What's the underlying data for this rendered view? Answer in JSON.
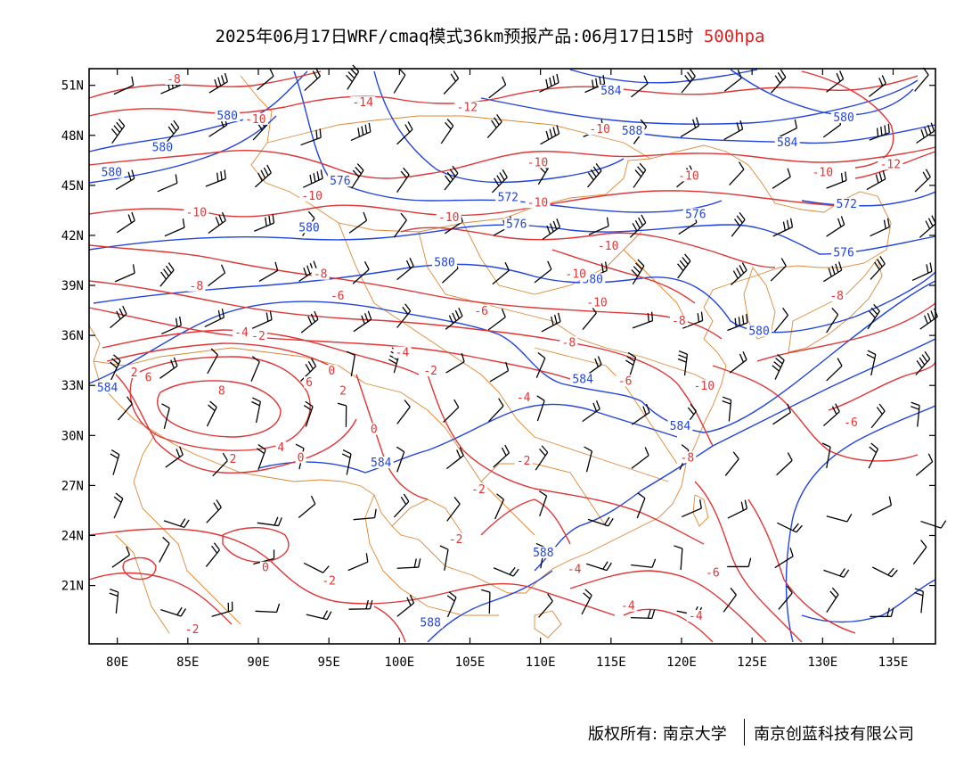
{
  "title": {
    "main": "2025年06月17日WRF/cmaq模式36km预报产品:06月17日15时",
    "level": "500hpa"
  },
  "axes": {
    "lat_labels": [
      "51N",
      "48N",
      "45N",
      "42N",
      "39N",
      "36N",
      "33N",
      "30N",
      "27N",
      "24N",
      "21N"
    ],
    "lat_values": [
      51,
      48,
      45,
      42,
      39,
      36,
      33,
      30,
      27,
      24,
      21
    ],
    "lon_labels": [
      "80E",
      "85E",
      "90E",
      "95E",
      "100E",
      "105E",
      "110E",
      "115E",
      "120E",
      "125E",
      "130E",
      "135E"
    ],
    "lon_values": [
      80,
      85,
      90,
      95,
      100,
      105,
      110,
      115,
      120,
      125,
      130,
      135
    ],
    "lon_range": [
      78,
      138
    ],
    "lat_range": [
      17.5,
      52
    ]
  },
  "colors": {
    "height_contours": "#2244dd",
    "temperature_contours": "#e03535",
    "boundaries": "#dd8833",
    "wind_barbs": "#000000"
  },
  "map": {
    "layers": [
      "geopotential-height (blue)",
      "temperature (red)",
      "wind-barbs (black)",
      "province-boundaries (orange)"
    ],
    "height_labels": [
      {
        "text": "584",
        "lon": 115,
        "lat": 50.5
      },
      {
        "text": "588",
        "lon": 116.5,
        "lat": 48.1
      },
      {
        "text": "580",
        "lon": 131.5,
        "lat": 48.9
      },
      {
        "text": "584",
        "lon": 127.5,
        "lat": 47.4
      },
      {
        "text": "580",
        "lon": 87.8,
        "lat": 49.0
      },
      {
        "text": "580",
        "lon": 83.2,
        "lat": 47.1
      },
      {
        "text": "580",
        "lon": 79.6,
        "lat": 45.6
      },
      {
        "text": "576",
        "lon": 95.8,
        "lat": 45.1
      },
      {
        "text": "572",
        "lon": 107.7,
        "lat": 44.1
      },
      {
        "text": "572",
        "lon": 131.7,
        "lat": 43.7
      },
      {
        "text": "576",
        "lon": 108.3,
        "lat": 42.5
      },
      {
        "text": "576",
        "lon": 121.0,
        "lat": 43.1
      },
      {
        "text": "576",
        "lon": 131.5,
        "lat": 40.8
      },
      {
        "text": "580",
        "lon": 93.6,
        "lat": 42.3
      },
      {
        "text": "580",
        "lon": 103.2,
        "lat": 40.2
      },
      {
        "text": "580",
        "lon": 113.7,
        "lat": 39.2
      },
      {
        "text": "580",
        "lon": 125.5,
        "lat": 36.1
      },
      {
        "text": "584",
        "lon": 79.3,
        "lat": 32.7
      },
      {
        "text": "584",
        "lon": 113.0,
        "lat": 33.2
      },
      {
        "text": "584",
        "lon": 119.9,
        "lat": 30.4
      },
      {
        "text": "584",
        "lon": 98.7,
        "lat": 28.2
      },
      {
        "text": "588",
        "lon": 110.2,
        "lat": 22.8
      },
      {
        "text": "588",
        "lon": 102.2,
        "lat": 18.6
      }
    ],
    "temp_labels": [
      {
        "text": "-8",
        "lon": 84.0,
        "lat": 51.2
      },
      {
        "text": "-10",
        "lon": 89.8,
        "lat": 48.8
      },
      {
        "text": "-14",
        "lon": 97.4,
        "lat": 49.8
      },
      {
        "text": "-12",
        "lon": 104.8,
        "lat": 49.5
      },
      {
        "text": "-10",
        "lon": 114.2,
        "lat": 48.2
      },
      {
        "text": "-10",
        "lon": 109.8,
        "lat": 46.2
      },
      {
        "text": "-10",
        "lon": 120.5,
        "lat": 45.4
      },
      {
        "text": "-10",
        "lon": 130.0,
        "lat": 45.6
      },
      {
        "text": "-12",
        "lon": 134.8,
        "lat": 46.1
      },
      {
        "text": "-10",
        "lon": 93.8,
        "lat": 44.2
      },
      {
        "text": "-10",
        "lon": 109.8,
        "lat": 43.8
      },
      {
        "text": "-10",
        "lon": 103.5,
        "lat": 42.9
      },
      {
        "text": "-10",
        "lon": 85.6,
        "lat": 43.2
      },
      {
        "text": "-10",
        "lon": 114.8,
        "lat": 41.2
      },
      {
        "text": "-10",
        "lon": 112.5,
        "lat": 39.5
      },
      {
        "text": "-10",
        "lon": 114.0,
        "lat": 37.8
      },
      {
        "text": "-8",
        "lon": 94.4,
        "lat": 39.5
      },
      {
        "text": "-8",
        "lon": 85.6,
        "lat": 38.8
      },
      {
        "text": "-6",
        "lon": 95.6,
        "lat": 38.2
      },
      {
        "text": "-6",
        "lon": 105.8,
        "lat": 37.3
      },
      {
        "text": "-8",
        "lon": 119.8,
        "lat": 36.7
      },
      {
        "text": "-8",
        "lon": 131.0,
        "lat": 38.2
      },
      {
        "text": "-8",
        "lon": 112.0,
        "lat": 35.4
      },
      {
        "text": "-4",
        "lon": 88.8,
        "lat": 36.0
      },
      {
        "text": "-2",
        "lon": 90.0,
        "lat": 35.8
      },
      {
        "text": "-4",
        "lon": 100.2,
        "lat": 34.8
      },
      {
        "text": "-2",
        "lon": 102.2,
        "lat": 33.7
      },
      {
        "text": "0",
        "lon": 95.2,
        "lat": 33.7
      },
      {
        "text": "2",
        "lon": 81.2,
        "lat": 33.6
      },
      {
        "text": "6",
        "lon": 82.2,
        "lat": 33.3
      },
      {
        "text": "6",
        "lon": 93.6,
        "lat": 33.0
      },
      {
        "text": "8",
        "lon": 87.4,
        "lat": 32.5
      },
      {
        "text": "2",
        "lon": 96.0,
        "lat": 32.5
      },
      {
        "text": "-6",
        "lon": 116.0,
        "lat": 33.1
      },
      {
        "text": "-10",
        "lon": 121.6,
        "lat": 32.8
      },
      {
        "text": "-4",
        "lon": 108.8,
        "lat": 32.1
      },
      {
        "text": "-6",
        "lon": 132.0,
        "lat": 30.6
      },
      {
        "text": "0",
        "lon": 98.2,
        "lat": 30.2
      },
      {
        "text": "4",
        "lon": 91.6,
        "lat": 29.1
      },
      {
        "text": "2",
        "lon": 88.2,
        "lat": 28.4
      },
      {
        "text": "0",
        "lon": 93.0,
        "lat": 28.5
      },
      {
        "text": "-8",
        "lon": 120.4,
        "lat": 28.5
      },
      {
        "text": "-2",
        "lon": 108.8,
        "lat": 28.3
      },
      {
        "text": "-2",
        "lon": 105.6,
        "lat": 26.6
      },
      {
        "text": "-2",
        "lon": 104.0,
        "lat": 23.6
      },
      {
        "text": "-4",
        "lon": 112.4,
        "lat": 21.8
      },
      {
        "text": "-6",
        "lon": 122.2,
        "lat": 21.6
      },
      {
        "text": "0",
        "lon": 90.5,
        "lat": 21.9
      },
      {
        "text": "-2",
        "lon": 95.0,
        "lat": 21.1
      },
      {
        "text": "-4",
        "lon": 116.2,
        "lat": 19.6
      },
      {
        "text": "-4",
        "lon": 121.0,
        "lat": 19.0
      },
      {
        "text": "-2",
        "lon": 85.3,
        "lat": 18.2
      }
    ]
  },
  "footer": {
    "copyright": "版权所有: 南京大学",
    "company": "南京创蓝科技有限公司"
  }
}
